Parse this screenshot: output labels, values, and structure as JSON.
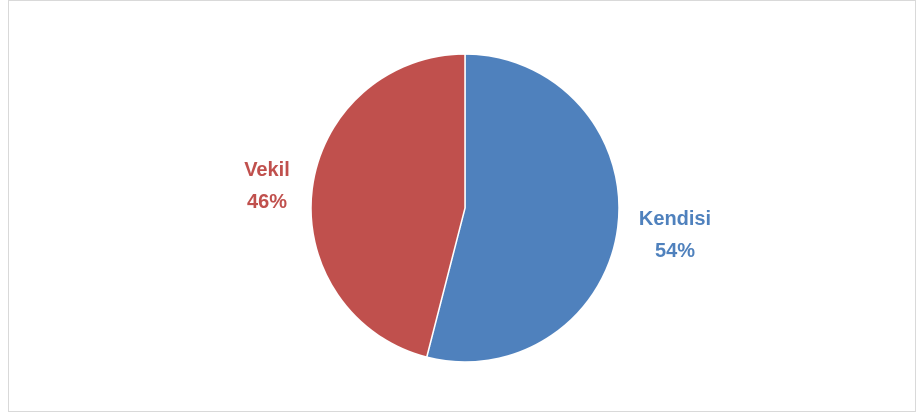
{
  "chart_data": {
    "type": "pie",
    "title": "",
    "slices": [
      {
        "label": "Kendisi",
        "value": 54,
        "percent_label": "54%",
        "color": "#4f81bd"
      },
      {
        "label": "Vekil",
        "value": 46,
        "percent_label": "46%",
        "color": "#c0504d"
      }
    ],
    "legend": "none",
    "data_labels": "outside"
  }
}
